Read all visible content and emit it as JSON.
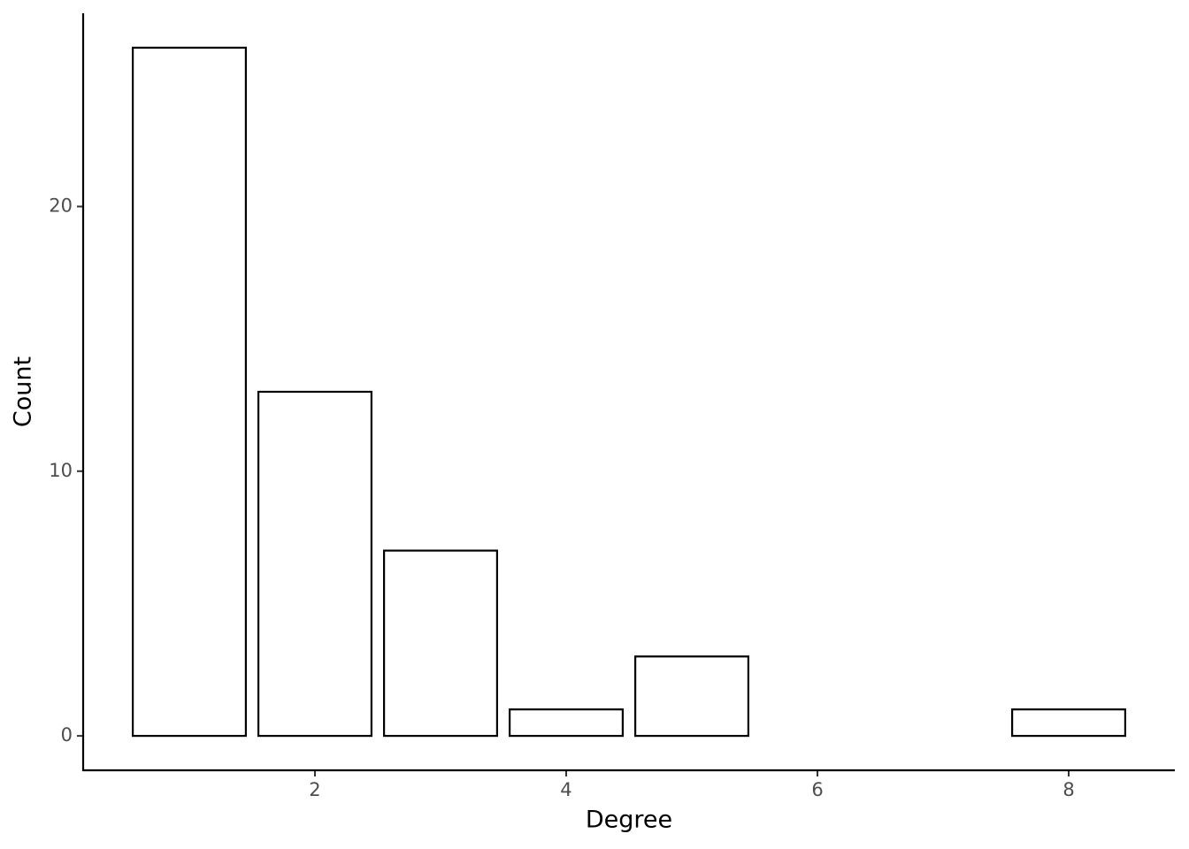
{
  "chart_data": {
    "type": "bar",
    "x_label": "Degree",
    "y_label": "Count",
    "x": [
      1,
      2,
      3,
      4,
      5,
      8
    ],
    "values": [
      26,
      13,
      7,
      1,
      3,
      1
    ],
    "fill": "#ffffff",
    "stroke": "#000000",
    "xlim": [
      0.155,
      8.845
    ],
    "xticks": [
      2,
      4,
      6,
      8
    ],
    "ylim": [
      -1.3,
      27.3
    ],
    "yticks": [
      0,
      10,
      20
    ],
    "grid": false
  }
}
